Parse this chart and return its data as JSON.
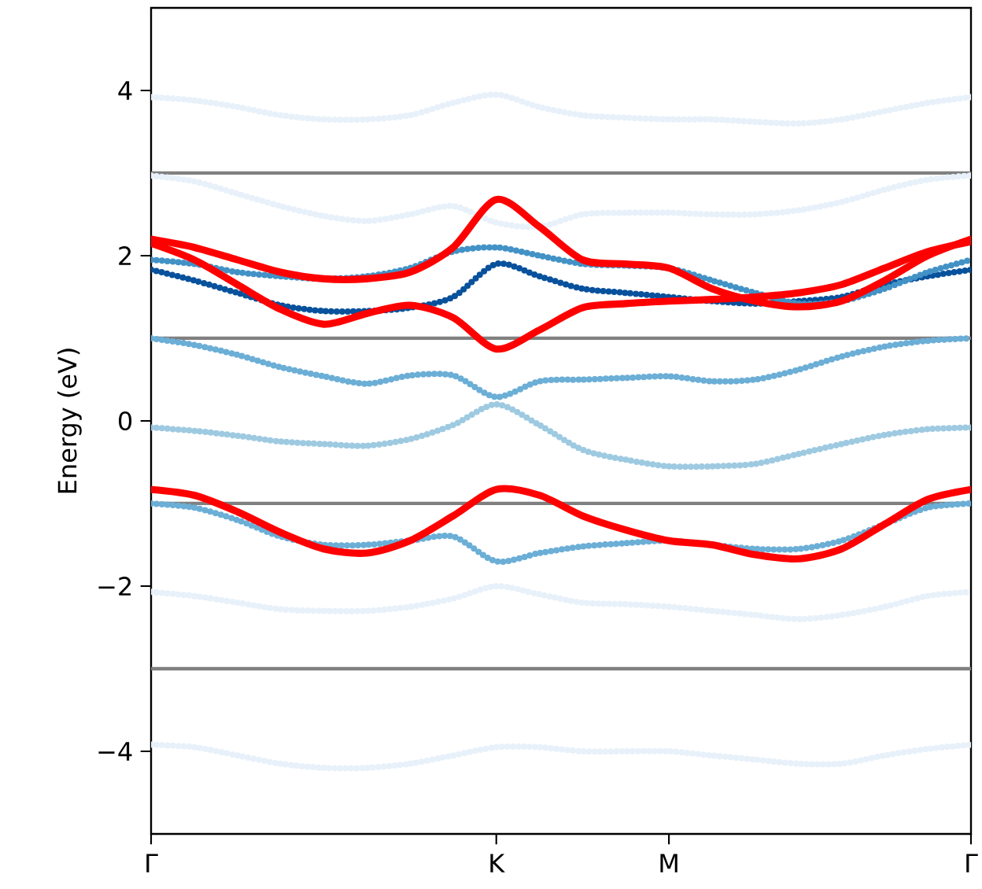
{
  "chart_data": {
    "type": "line",
    "ylabel": "Energy (eV)",
    "categories": [
      "Γ",
      null,
      null,
      null,
      null,
      null,
      null,
      null,
      "K",
      null,
      null,
      null,
      "M",
      null,
      null,
      null,
      null,
      null,
      null,
      "Γ"
    ],
    "ylim": [
      -5,
      5
    ],
    "yticks": [
      {
        "value": -4,
        "label": "−4"
      },
      {
        "value": -2,
        "label": "−2"
      },
      0,
      2,
      4
    ],
    "ref_lines": [
      {
        "axis": "y",
        "value": 3,
        "color": "#808080"
      },
      {
        "axis": "y",
        "value": 1,
        "color": "#808080"
      },
      {
        "axis": "y",
        "value": -1,
        "color": "#808080"
      },
      {
        "axis": "y",
        "value": -3,
        "color": "#808080"
      }
    ],
    "series": [
      {
        "color": "#e8f1fa",
        "line_style": "dotted",
        "values": [
          3.92,
          3.88,
          3.8,
          3.7,
          3.65,
          3.65,
          3.7,
          3.85,
          3.95,
          3.8,
          3.7,
          3.67,
          3.65,
          3.65,
          3.62,
          3.6,
          3.65,
          3.75,
          3.85,
          3.92
        ]
      },
      {
        "color": "#e8f1fa",
        "line_style": "dotted",
        "values": [
          2.97,
          2.9,
          2.75,
          2.6,
          2.48,
          2.42,
          2.5,
          2.6,
          2.4,
          2.35,
          2.5,
          2.52,
          2.52,
          2.5,
          2.5,
          2.55,
          2.65,
          2.8,
          2.92,
          2.97
        ]
      },
      {
        "color": "#e8f1fa",
        "line_style": "dotted",
        "values": [
          -2.07,
          -2.12,
          -2.2,
          -2.28,
          -2.3,
          -2.3,
          -2.25,
          -2.15,
          -2.0,
          -2.1,
          -2.2,
          -2.22,
          -2.25,
          -2.3,
          -2.35,
          -2.4,
          -2.35,
          -2.25,
          -2.12,
          -2.07
        ]
      },
      {
        "color": "#e8f1fa",
        "line_style": "dotted",
        "values": [
          -3.92,
          -3.95,
          -4.05,
          -4.15,
          -4.2,
          -4.2,
          -4.15,
          -4.05,
          -3.95,
          -3.95,
          -4.0,
          -4.0,
          -4.0,
          -4.05,
          -4.1,
          -4.15,
          -4.15,
          -4.05,
          -3.97,
          -3.92
        ]
      },
      {
        "color": "#08519c",
        "line_style": "dotted",
        "values": [
          1.83,
          1.7,
          1.55,
          1.4,
          1.33,
          1.33,
          1.37,
          1.5,
          1.9,
          1.75,
          1.6,
          1.55,
          1.5,
          1.45,
          1.42,
          1.45,
          1.5,
          1.65,
          1.75,
          1.83
        ]
      },
      {
        "color": "#4292c6",
        "line_style": "dotted",
        "values": [
          1.95,
          1.9,
          1.8,
          1.75,
          1.72,
          1.75,
          1.85,
          2.05,
          2.1,
          2.0,
          1.9,
          1.88,
          1.85,
          1.7,
          1.55,
          1.42,
          1.45,
          1.6,
          1.8,
          1.95
        ]
      },
      {
        "color": "#6baed6",
        "line_style": "dotted",
        "values": [
          1.0,
          0.92,
          0.8,
          0.65,
          0.54,
          0.45,
          0.55,
          0.55,
          0.29,
          0.48,
          0.5,
          0.52,
          0.54,
          0.48,
          0.5,
          0.62,
          0.78,
          0.9,
          0.97,
          1.0
        ]
      },
      {
        "color": "#9ecae1",
        "line_style": "dotted",
        "values": [
          -0.08,
          -0.12,
          -0.18,
          -0.25,
          -0.28,
          -0.3,
          -0.22,
          -0.05,
          0.2,
          -0.05,
          -0.35,
          -0.47,
          -0.55,
          -0.55,
          -0.52,
          -0.4,
          -0.28,
          -0.17,
          -0.1,
          -0.08
        ]
      },
      {
        "color": "#6baed6",
        "line_style": "dotted",
        "values": [
          -1.0,
          -1.05,
          -1.2,
          -1.4,
          -1.5,
          -1.5,
          -1.45,
          -1.4,
          -1.7,
          -1.6,
          -1.52,
          -1.48,
          -1.45,
          -1.5,
          -1.55,
          -1.55,
          -1.45,
          -1.25,
          -1.05,
          -1.0
        ]
      },
      {
        "color": "#ff0000",
        "line_style": "solid",
        "values": [
          2.2,
          2.1,
          1.95,
          1.8,
          1.72,
          1.72,
          1.8,
          2.1,
          2.68,
          2.35,
          1.95,
          1.9,
          1.85,
          1.6,
          1.45,
          1.38,
          1.45,
          1.7,
          2.0,
          2.2
        ]
      },
      {
        "color": "#ff0000",
        "line_style": "solid",
        "values": [
          2.15,
          1.95,
          1.65,
          1.35,
          1.17,
          1.3,
          1.4,
          1.25,
          0.87,
          1.1,
          1.37,
          1.42,
          1.45,
          1.47,
          1.5,
          1.55,
          1.65,
          1.85,
          2.05,
          2.17
        ]
      },
      {
        "color": "#ff0000",
        "line_style": "solid",
        "values": [
          -0.83,
          -0.9,
          -1.1,
          -1.35,
          -1.55,
          -1.6,
          -1.45,
          -1.15,
          -0.83,
          -0.9,
          -1.15,
          -1.32,
          -1.45,
          -1.5,
          -1.62,
          -1.67,
          -1.55,
          -1.25,
          -0.95,
          -0.83
        ]
      }
    ]
  }
}
